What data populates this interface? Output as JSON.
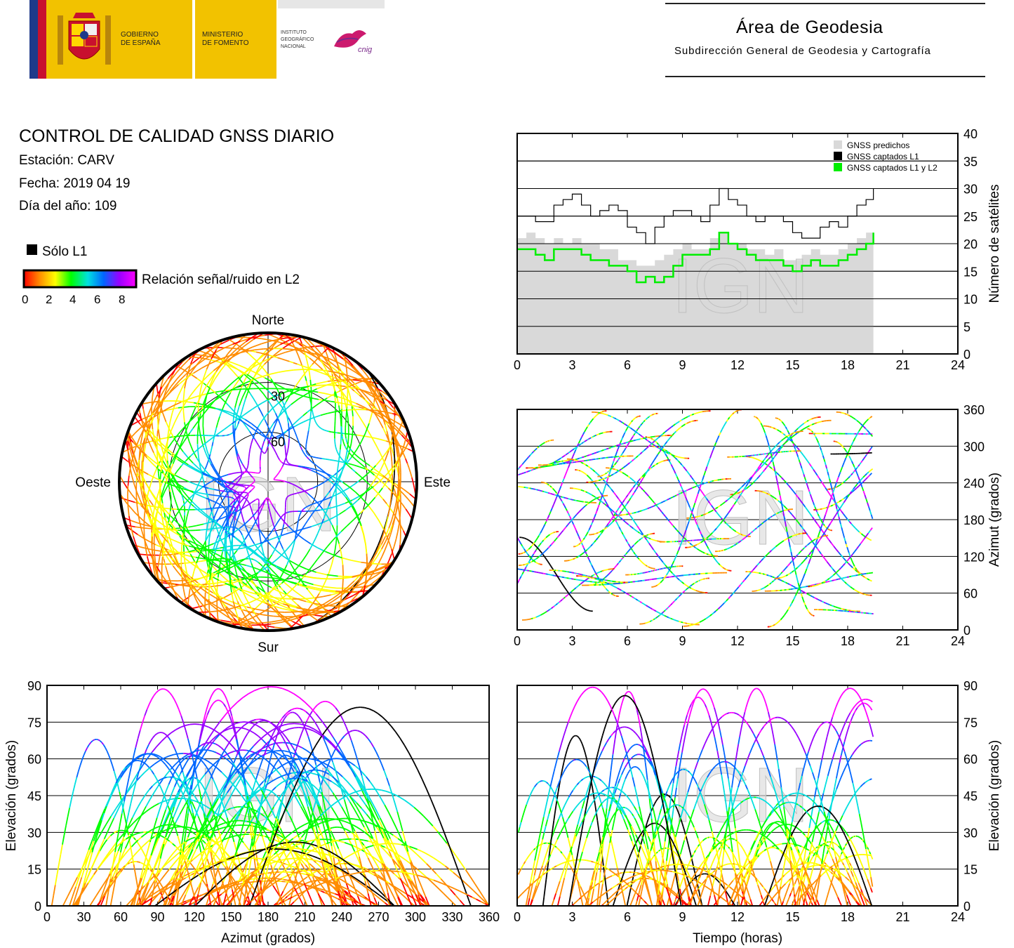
{
  "header": {
    "gobierno": [
      "GOBIERNO",
      "DE ESPAÑA"
    ],
    "ministerio": [
      "MINISTERIO",
      "DE FOMENTO"
    ],
    "instituto": [
      "INSTITUTO",
      "GEOGRÁFICO",
      "NACIONAL"
    ],
    "cnig": "cnig",
    "area_title": "Área de Geodesia",
    "area_subtitle": "Subdirección General de Geodesia y Cartografía"
  },
  "info": {
    "title": "CONTROL DE CALIDAD GNSS DIARIO",
    "station": "Estación: CARV",
    "date": "Fecha: 2019 04 19",
    "doy": "Día del año: 109"
  },
  "legend": {
    "solo_l1": "Sólo L1",
    "snr_label": "Relación señal/ruido en L2",
    "snr_ticks": [
      "0",
      "2",
      "4",
      "6",
      "8"
    ],
    "colors": [
      "#ff0000",
      "#ff8c00",
      "#ffff00",
      "#00ff00",
      "#00e0e0",
      "#0066ff",
      "#9900ff",
      "#ff00ff"
    ]
  },
  "watermark": "IGN",
  "chart_data": [
    {
      "id": "satellite-count",
      "type": "line",
      "xlim": [
        0,
        24
      ],
      "ylim": [
        0,
        40
      ],
      "x_ticks": [
        0,
        3,
        6,
        9,
        12,
        15,
        18,
        21,
        24
      ],
      "y_ticks": [
        0,
        5,
        10,
        15,
        20,
        25,
        30,
        35,
        40
      ],
      "ylabel": "Número de satélites",
      "grid": "horizontal",
      "legend_position": "top-right",
      "series": [
        {
          "name": "GNSS predichos",
          "color": "#d9d9d9",
          "x": [
            0,
            0.5,
            1,
            1.5,
            2,
            2.5,
            3,
            3.5,
            4,
            4.5,
            5,
            5.5,
            6,
            6.5,
            7,
            7.5,
            8,
            8.5,
            9,
            9.5,
            10,
            10.5,
            11,
            11.5,
            12,
            12.5,
            13,
            13.5,
            14,
            14.5,
            15,
            15.5,
            16,
            16.5,
            17,
            17.5,
            18,
            18.5,
            19,
            19.4
          ],
          "values": [
            21,
            22,
            21,
            20,
            21,
            20,
            21,
            20,
            20,
            19,
            19,
            17,
            17,
            16,
            16,
            17,
            18,
            19,
            20,
            19,
            19,
            21,
            22,
            20,
            20,
            19,
            19,
            18,
            19,
            17,
            17,
            18,
            19,
            18,
            18,
            19,
            20,
            21,
            22,
            24
          ]
        },
        {
          "name": "GNSS captados L1",
          "color": "#000000",
          "x": [
            0,
            0.5,
            1,
            1.5,
            2,
            2.5,
            3,
            3.5,
            4,
            4.5,
            5,
            5.5,
            6,
            6.5,
            7,
            7.5,
            8,
            8.5,
            9,
            9.5,
            10,
            10.5,
            11,
            11.5,
            12,
            12.5,
            13,
            13.5,
            14,
            14.5,
            15,
            15.5,
            16,
            16.5,
            17,
            17.5,
            18,
            18.5,
            19,
            19.4
          ],
          "values": [
            25,
            25,
            24,
            24,
            27,
            28,
            29,
            27,
            25,
            26,
            27,
            26,
            23,
            22,
            20,
            23,
            25,
            26,
            26,
            25,
            24,
            27,
            30,
            28,
            27,
            25,
            24,
            25,
            25,
            24,
            22,
            21,
            21,
            23,
            24,
            23,
            25,
            27,
            28,
            30
          ]
        },
        {
          "name": "GNSS captados L1 y L2",
          "color": "#00ee00",
          "x": [
            0,
            0.5,
            1,
            1.5,
            2,
            2.5,
            3,
            3.5,
            4,
            4.5,
            5,
            5.5,
            6,
            6.5,
            7,
            7.5,
            8,
            8.5,
            9,
            9.5,
            10,
            10.5,
            11,
            11.5,
            12,
            12.5,
            13,
            13.5,
            14,
            14.5,
            15,
            15.5,
            16,
            16.5,
            17,
            17.5,
            18,
            18.5,
            19,
            19.4
          ],
          "values": [
            19,
            19,
            18,
            17,
            19,
            19,
            19,
            18,
            17,
            17,
            16,
            16,
            15,
            13,
            14,
            13,
            14,
            16,
            18,
            18,
            18,
            19,
            22,
            20,
            19,
            18,
            17,
            17,
            17,
            16,
            15,
            16,
            17,
            16,
            16,
            17,
            18,
            19,
            20,
            22
          ]
        }
      ]
    },
    {
      "id": "azimuth-vs-time",
      "type": "scatter",
      "xlim": [
        0,
        24
      ],
      "ylim": [
        0,
        360
      ],
      "x_ticks": [
        0,
        3,
        6,
        9,
        12,
        15,
        18,
        21,
        24
      ],
      "y_ticks": [
        0,
        60,
        120,
        180,
        240,
        300,
        360
      ],
      "ylabel": "Azimut (grados)",
      "grid": "horizontal",
      "data_extent_hours": 19.4
    },
    {
      "id": "elevation-vs-azimuth",
      "type": "scatter",
      "xlim": [
        0,
        360
      ],
      "ylim": [
        0,
        90
      ],
      "x_ticks": [
        0,
        30,
        60,
        90,
        120,
        150,
        180,
        210,
        240,
        270,
        300,
        330,
        360
      ],
      "y_ticks": [
        0,
        15,
        30,
        45,
        60,
        75,
        90
      ],
      "xlabel": "Azimut (grados)",
      "ylabel": "Elevación (grados)",
      "grid": "horizontal"
    },
    {
      "id": "elevation-vs-time",
      "type": "scatter",
      "xlim": [
        0,
        24
      ],
      "ylim": [
        0,
        90
      ],
      "x_ticks": [
        0,
        3,
        6,
        9,
        12,
        15,
        18,
        21,
        24
      ],
      "y_ticks": [
        0,
        15,
        30,
        45,
        60,
        75,
        90
      ],
      "xlabel": "Tiempo (horas)",
      "ylabel": "Elevación (grados)",
      "grid": "horizontal",
      "data_extent_hours": 19.4
    },
    {
      "id": "skyplot",
      "type": "scatter",
      "elevation_rings": [
        "30",
        "60"
      ],
      "directions": {
        "north": "Norte",
        "south": "Sur",
        "east": "Este",
        "west": "Oeste"
      }
    }
  ]
}
